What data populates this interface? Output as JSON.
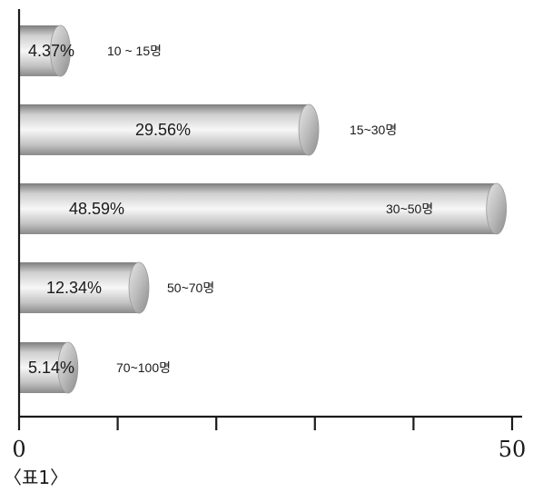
{
  "chart_data": {
    "type": "bar",
    "orientation": "horizontal",
    "categories": [
      "10 ~ 15명",
      "15~30명",
      "30~50명",
      "50~70명",
      "70~100명"
    ],
    "values": [
      4.37,
      29.56,
      48.59,
      12.34,
      5.14
    ],
    "value_labels": [
      "4.37%",
      "29.56%",
      "48.59%",
      "12.34%",
      "5.14%"
    ],
    "x_ticks": [
      0,
      10,
      20,
      30,
      40,
      50
    ],
    "x_tick_labels": [
      "0",
      "",
      "",
      "",
      "",
      "50"
    ],
    "xlim": [
      0,
      50
    ],
    "title": "",
    "xlabel": "",
    "ylabel": "",
    "grid": false,
    "legend": "none",
    "caption": "〈표1〉",
    "colors": {
      "bar_dark": "#8c8c8c",
      "bar_light": "#f4f4f4",
      "axis": "#1a1a1a"
    }
  }
}
